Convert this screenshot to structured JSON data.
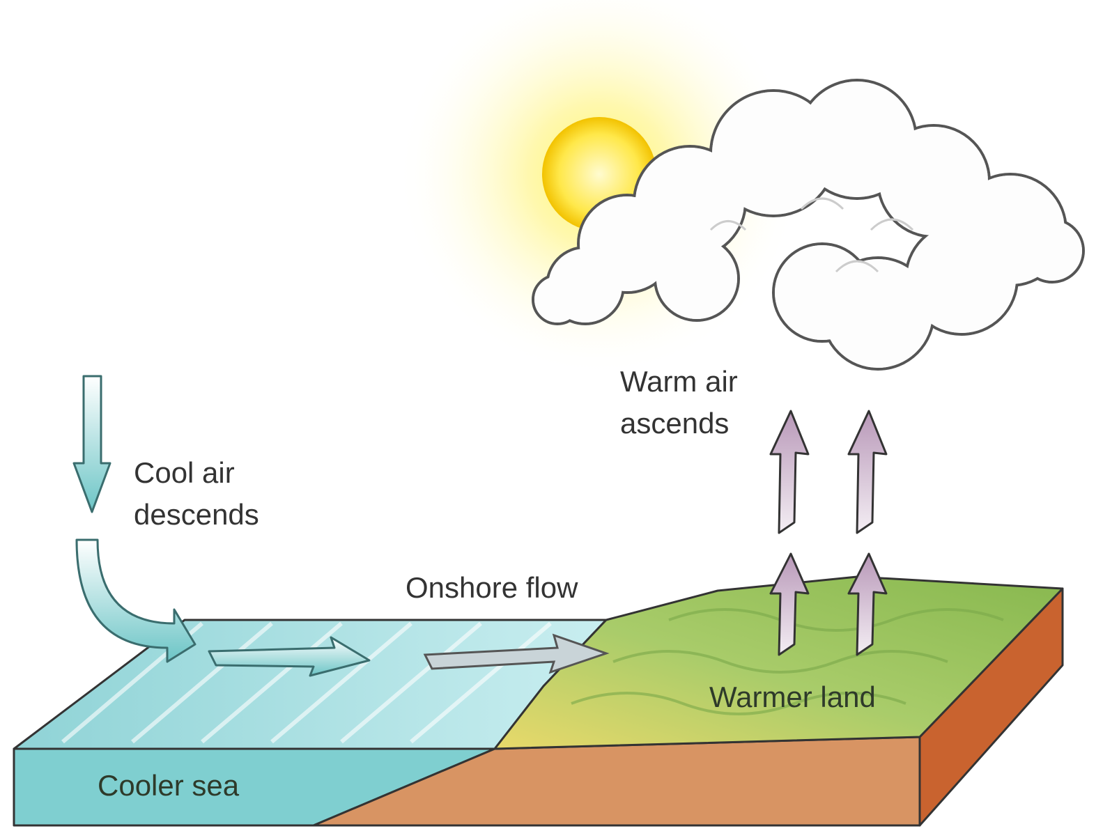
{
  "labels": {
    "warm_air": [
      "Warm air",
      "ascends"
    ],
    "cool_air": [
      "Cool air",
      "descends"
    ],
    "onshore_flow": "Onshore flow",
    "warmer_land": "Warmer land",
    "cooler_sea": "Cooler sea"
  }
}
